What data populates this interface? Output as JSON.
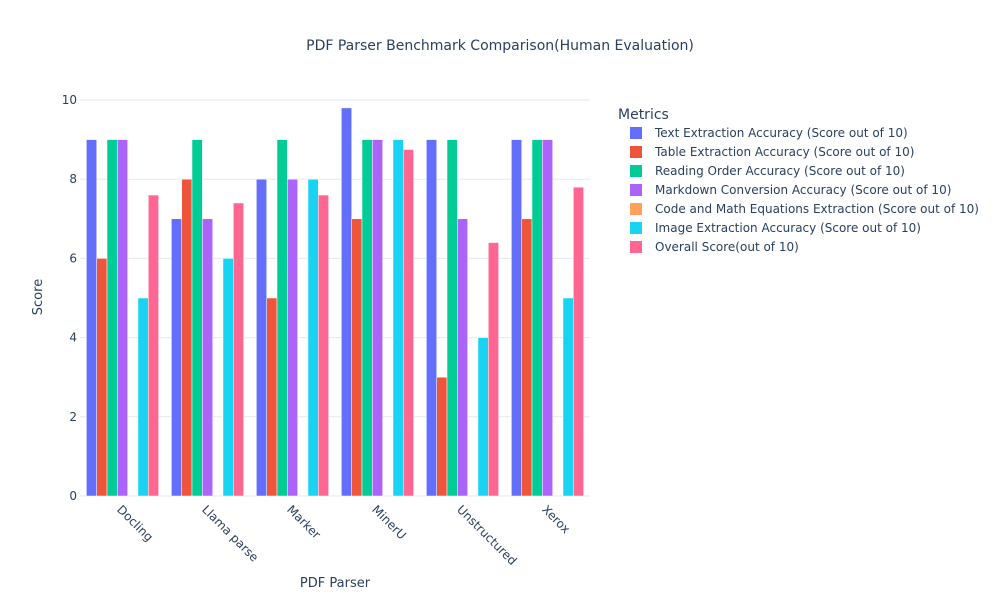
{
  "chart_data": {
    "type": "bar",
    "title": "PDF Parser Benchmark Comparison(Human Evaluation)",
    "xlabel": "PDF Parser",
    "ylabel": "Score",
    "ylim": [
      0,
      10
    ],
    "yticks": [
      0,
      2,
      4,
      6,
      8,
      10
    ],
    "grid": true,
    "legend_title": "Metrics",
    "legend_position": "right",
    "categories": [
      "Docling",
      "Llama parse",
      "Marker",
      "MinerU",
      "Unstructured",
      "Xerox"
    ],
    "series": [
      {
        "name": "Text Extraction Accuracy (Score out of 10)",
        "color": "#636efa",
        "values": [
          9,
          7,
          8,
          9.8,
          9,
          9
        ]
      },
      {
        "name": "Table Extraction Accuracy (Score out of 10)",
        "color": "#ef553b",
        "values": [
          6,
          8,
          5,
          7,
          3,
          7
        ]
      },
      {
        "name": "Reading Order Accuracy (Score out of 10)",
        "color": "#00cc96",
        "values": [
          9,
          9,
          9,
          9,
          9,
          9
        ]
      },
      {
        "name": "Markdown Conversion Accuracy (Score out of 10)",
        "color": "#ab63fa",
        "values": [
          9,
          7,
          8,
          9,
          7,
          9
        ]
      },
      {
        "name": "Code and Math Equations Extraction (Score out of 10)",
        "color": "#ffa15a",
        "values": [
          0,
          0,
          0,
          0,
          0,
          0
        ]
      },
      {
        "name": "Image Extraction Accuracy (Score out of 10)",
        "color": "#19d3f3",
        "values": [
          5,
          6,
          8,
          9,
          4,
          5
        ]
      },
      {
        "name": "Overall Score(out of 10)",
        "color": "#ff6692",
        "values": [
          7.6,
          7.4,
          7.6,
          8.75,
          6.4,
          7.8
        ]
      }
    ]
  }
}
